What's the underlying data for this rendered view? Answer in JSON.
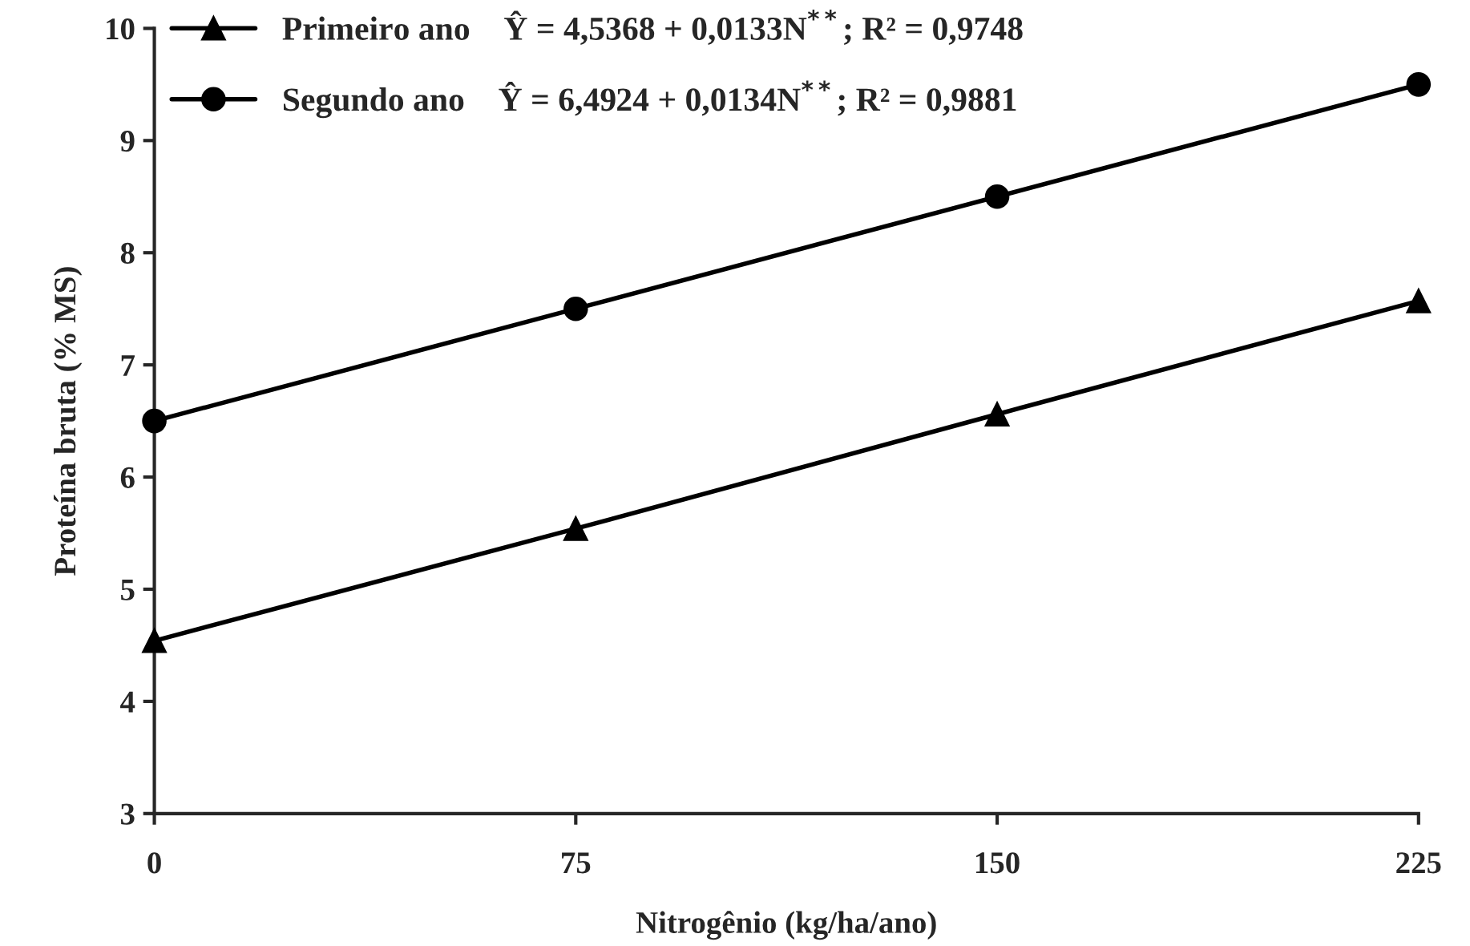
{
  "chart_data": {
    "type": "line",
    "xlabel": "Nitrogênio (kg/ha/ano)",
    "ylabel": "Proteína bruta (% MS)",
    "x": [
      0,
      75,
      150,
      225
    ],
    "xlim": [
      0,
      225
    ],
    "xticks": [
      0,
      75,
      150,
      225
    ],
    "ylim": [
      3,
      10
    ],
    "yticks": [
      3,
      4,
      5,
      6,
      7,
      8,
      9,
      10
    ],
    "grid": false,
    "legend": "top left",
    "line_style": "solid",
    "series": [
      {
        "name": "Primeiro ano    Ŷ = 4,5368 + 0,0133N$^{**}$; R² = 0,9748",
        "color": "#000000",
        "marker": "triangle",
        "values": [
          4.54,
          5.54,
          6.56,
          7.57
        ]
      },
      {
        "name": "Segundo ano    Ŷ = 6,4924 + 0,0134N$^{**}$; R² = 0,9881",
        "color": "#000000",
        "marker": "circle",
        "values": [
          6.5,
          7.5,
          8.5,
          9.5
        ]
      }
    ]
  }
}
